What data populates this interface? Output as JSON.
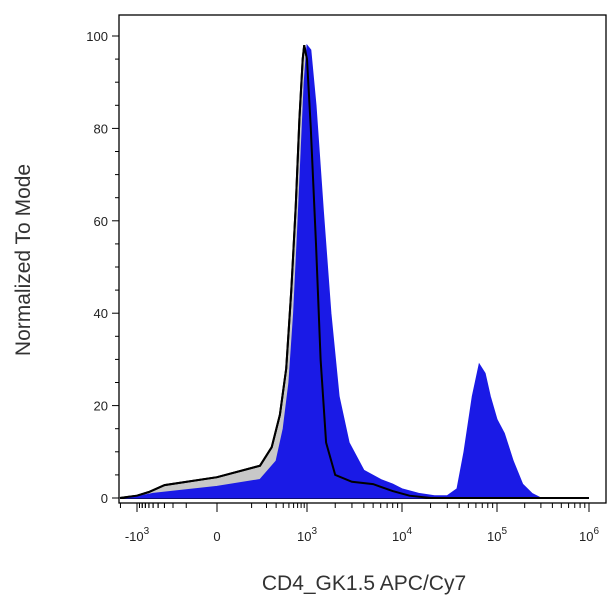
{
  "chart_data": {
    "type": "area",
    "xlabel": "CD4_GK1.5 APC/Cy7",
    "ylabel": "Normalized To Mode",
    "x_scale": "biexponential",
    "ylim": [
      0,
      105
    ],
    "y_ticks": [
      0,
      20,
      40,
      60,
      80,
      100
    ],
    "x_ticks": [
      {
        "value": -1000,
        "base": "-10",
        "exp": "3"
      },
      {
        "value": 0,
        "base": "0",
        "exp": ""
      },
      {
        "value": 1000,
        "base": "10",
        "exp": "3"
      },
      {
        "value": 10000,
        "base": "10",
        "exp": "4"
      },
      {
        "value": 100000,
        "base": "10",
        "exp": "5"
      },
      {
        "value": 1000000,
        "base": "10",
        "exp": "6"
      }
    ],
    "grid": false,
    "legend": "none",
    "series": [
      {
        "fill": "#c8c8c8",
        "stroke": "#000000",
        "points": [
          [
            -3000,
            0
          ],
          [
            -1000,
            0.5
          ],
          [
            -600,
            1.3
          ],
          [
            -300,
            2.8
          ],
          [
            0,
            4.5
          ],
          [
            150,
            7
          ],
          [
            250,
            11
          ],
          [
            350,
            18
          ],
          [
            450,
            28
          ],
          [
            550,
            45
          ],
          [
            650,
            63
          ],
          [
            750,
            82
          ],
          [
            850,
            95
          ],
          [
            900,
            98
          ],
          [
            1000,
            95
          ],
          [
            1100,
            80
          ],
          [
            1250,
            55
          ],
          [
            1400,
            30
          ],
          [
            1600,
            12
          ],
          [
            2000,
            5
          ],
          [
            3000,
            3.5
          ],
          [
            5000,
            3
          ],
          [
            8000,
            1.5
          ],
          [
            12000,
            0.5
          ],
          [
            20000,
            0
          ],
          [
            1000000,
            0
          ]
        ]
      },
      {
        "fill": "#1a1ae6",
        "stroke": "#1a1ae6",
        "points": [
          [
            -3000,
            0
          ],
          [
            -1000,
            0.3
          ],
          [
            -500,
            1
          ],
          [
            0,
            2.5
          ],
          [
            150,
            4
          ],
          [
            300,
            8
          ],
          [
            400,
            15
          ],
          [
            500,
            25
          ],
          [
            600,
            40
          ],
          [
            700,
            58
          ],
          [
            800,
            75
          ],
          [
            900,
            90
          ],
          [
            1000,
            98
          ],
          [
            1100,
            97
          ],
          [
            1250,
            85
          ],
          [
            1500,
            62
          ],
          [
            1800,
            40
          ],
          [
            2200,
            22
          ],
          [
            2800,
            12
          ],
          [
            4000,
            6
          ],
          [
            6000,
            4
          ],
          [
            8000,
            3
          ],
          [
            10000,
            2
          ],
          [
            15000,
            1
          ],
          [
            22000,
            0.5
          ],
          [
            30000,
            0.5
          ],
          [
            38000,
            2
          ],
          [
            45000,
            10
          ],
          [
            55000,
            22
          ],
          [
            65000,
            29
          ],
          [
            75000,
            27
          ],
          [
            85000,
            22
          ],
          [
            100000,
            17
          ],
          [
            120000,
            14
          ],
          [
            150000,
            8
          ],
          [
            190000,
            3
          ],
          [
            240000,
            1
          ],
          [
            300000,
            0
          ],
          [
            1000000,
            0
          ]
        ]
      }
    ]
  }
}
